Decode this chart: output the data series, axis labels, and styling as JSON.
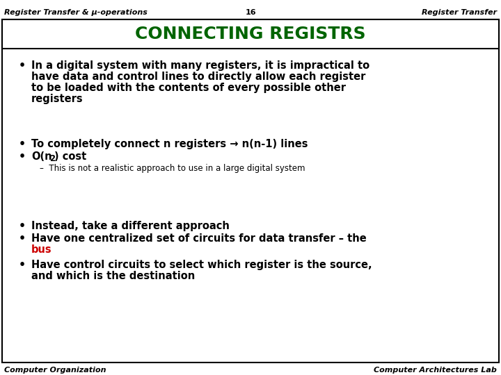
{
  "header_left": "Register Transfer & μ-operations",
  "header_center": "16",
  "header_right": "Register Transfer",
  "title": "CONNECTING REGISTRS",
  "title_color": "#006400",
  "footer_left": "Computer Organization",
  "footer_right": "Computer Architectures Lab",
  "bg_color": "#ffffff",
  "border_color": "#000000",
  "bullet1_lines": [
    "In a digital system with many registers, it is impractical to",
    "have data and control lines to directly allow each register",
    "to be loaded with the contents of every possible other",
    "registers"
  ],
  "bullet2": "To completely connect n registers → n(n-1) lines",
  "bullet3_prefix": "O(n",
  "bullet3_sup": "2",
  "bullet3_suffix": ") cost",
  "subbullet": "This is not a realistic approach to use in a large digital system",
  "bullet4": "Instead, take a different approach",
  "bullet5_prefix": "Have one centralized set of circuits for data transfer – the",
  "bullet5_red": "bus",
  "bullet6_line1": "Have control circuits to select which register is the source,",
  "bullet6_line2": "and which is the destination"
}
